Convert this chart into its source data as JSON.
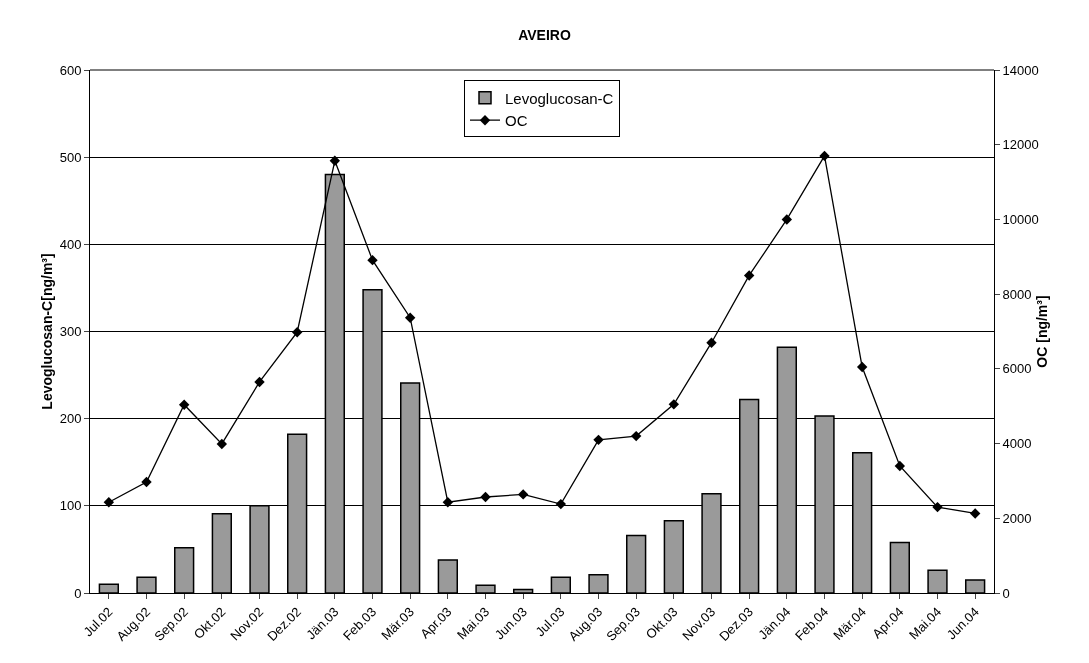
{
  "chart_data": {
    "type": "bar",
    "title": "AVEIRO",
    "ylabel": "Levoglucosan-C[ng/m³]",
    "y2label": "OC [ng/m³]",
    "categories": [
      "Jul.02",
      "Aug.02",
      "Sep.02",
      "Okt.02",
      "Nov.02",
      "Dez.02",
      "Jän.03",
      "Feb.03",
      "Mär.03",
      "Apr.03",
      "Mai.03",
      "Jun.03",
      "Jul.03",
      "Aug.03",
      "Sep.03",
      "Okt.03",
      "Nov.03",
      "Dez.03",
      "Jän.04",
      "Feb.04",
      "Mär.04",
      "Apr.04",
      "Mai.04",
      "Jun.04"
    ],
    "series": [
      {
        "name": "Levoglucosan-C",
        "color": "#9a9a9a",
        "values": [
          10,
          18,
          52,
          91,
          100,
          182,
          480,
          348,
          241,
          38,
          9,
          4,
          18,
          21,
          66,
          83,
          114,
          222,
          282,
          203,
          161,
          58,
          26,
          15
        ]
      },
      {
        "name": "OC",
        "type": "line",
        "axis": "y2",
        "color": "#000000",
        "marker": "diamond",
        "line_style": "solid",
        "values": [
          2430,
          2970,
          5040,
          3990,
          5650,
          6980,
          11570,
          8910,
          7370,
          2430,
          2570,
          2640,
          2380,
          4100,
          4200,
          5050,
          6700,
          8500,
          10000,
          11700,
          6050,
          3400,
          2300,
          2130
        ]
      }
    ],
    "ylim": [
      0,
      600
    ],
    "yticks": [
      0,
      100,
      200,
      300,
      400,
      500,
      600
    ],
    "y2lim": [
      0,
      14000
    ],
    "y2ticks": [
      0,
      2000,
      4000,
      6000,
      8000,
      10000,
      12000,
      14000
    ],
    "grid": "y",
    "legend": "top"
  }
}
